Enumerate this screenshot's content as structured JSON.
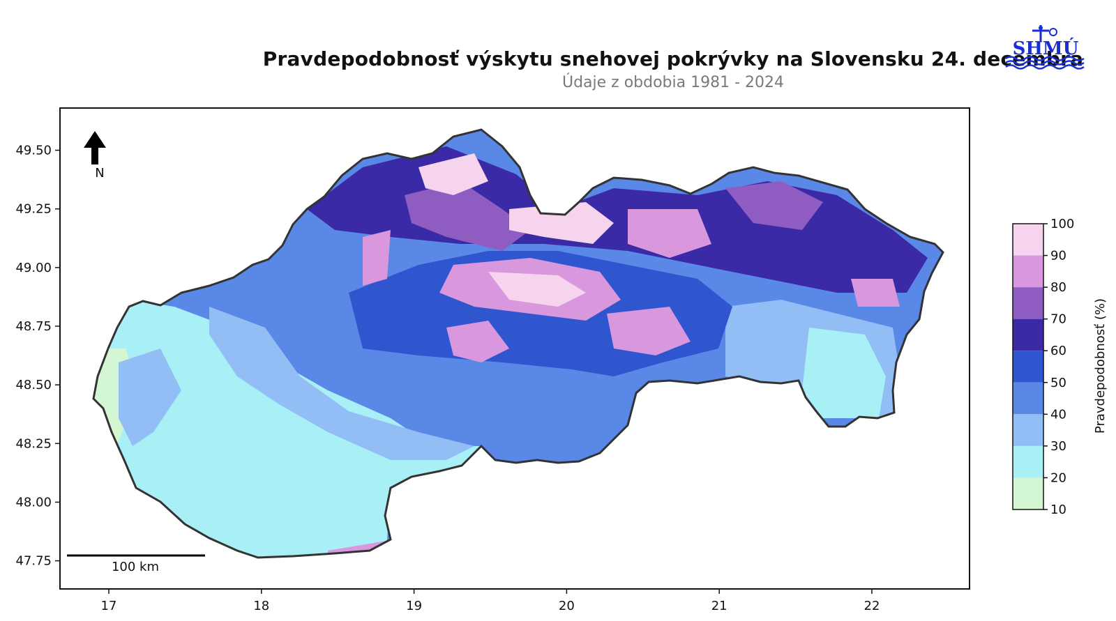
{
  "title": "Pravdepodobnosť výskytu snehovej pokrývky na Slovensku 24. decembra",
  "subtitle": "Údaje z obdobia 1981 - 2024",
  "logo_text": "SHMÚ",
  "north_label": "N",
  "scale_bar_label": "100 km",
  "x_axis": {
    "ticks": [
      "17",
      "18",
      "19",
      "20",
      "21",
      "22"
    ],
    "range": [
      16.68,
      22.64
    ]
  },
  "y_axis": {
    "ticks": [
      "49.50",
      "49.25",
      "49.00",
      "48.75",
      "48.50",
      "48.25",
      "48.00",
      "47.75"
    ],
    "range": [
      47.63,
      49.68
    ]
  },
  "colorbar": {
    "label": "Pravdepodobnosť (%)",
    "ticks": [
      "100",
      "90",
      "80",
      "70",
      "60",
      "50",
      "40",
      "30",
      "20",
      "10"
    ],
    "colors": [
      "#f7d4ee",
      "#d998de",
      "#8f5cc2",
      "#3b2aa6",
      "#2f55cf",
      "#5a88e6",
      "#93bdf5",
      "#a8f0f5",
      "#d2f7d2"
    ]
  },
  "colors": {
    "border": "#333333",
    "axis": "#111111"
  }
}
